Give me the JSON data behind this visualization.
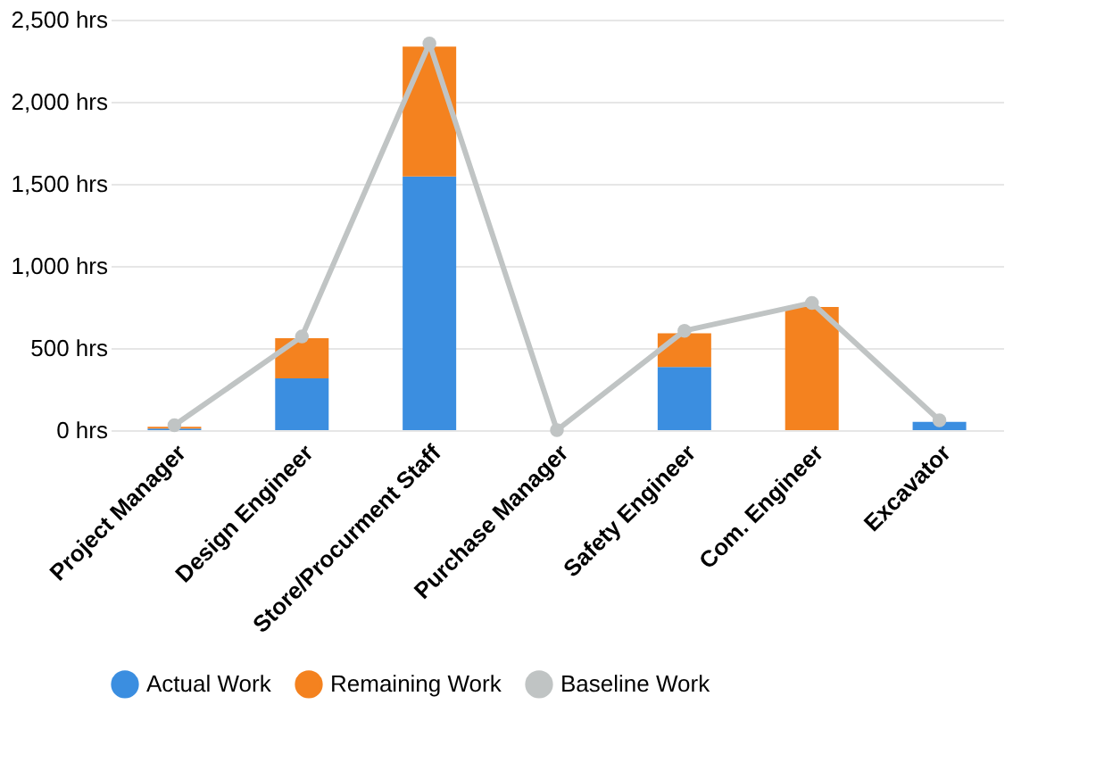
{
  "chart_data": {
    "type": "bar",
    "stacked": true,
    "categories": [
      "Project Manager",
      "Design Engineer",
      "Store/Procurment Staff",
      "Purchase Manager",
      "Safety Engineer",
      "Com. Engineer",
      "Excavator"
    ],
    "series": [
      {
        "name": "Actual Work",
        "color": "#3b8ee0",
        "values": [
          10,
          315,
          1545,
          0,
          385,
          0,
          50
        ]
      },
      {
        "name": "Remaining Work",
        "color": "#f4821f",
        "values": [
          10,
          245,
          790,
          0,
          205,
          750,
          0
        ]
      },
      {
        "name": "Baseline Work",
        "type": "line",
        "color": "#c0c4c4",
        "values": [
          30,
          570,
          2355,
          0,
          605,
          775,
          60
        ]
      }
    ],
    "ylim": [
      0,
      2500
    ],
    "yticks": [
      {
        "value": 0,
        "label": "0 hrs"
      },
      {
        "value": 500,
        "label": "500 hrs"
      },
      {
        "value": 1000,
        "label": "1,000 hrs"
      },
      {
        "value": 1500,
        "label": "1,500 hrs"
      },
      {
        "value": 2000,
        "label": "2,000 hrs"
      },
      {
        "value": 2500,
        "label": "2,500 hrs"
      }
    ],
    "grid": "y",
    "legend": "bottom",
    "marker": "circle",
    "line_style": "solid"
  }
}
